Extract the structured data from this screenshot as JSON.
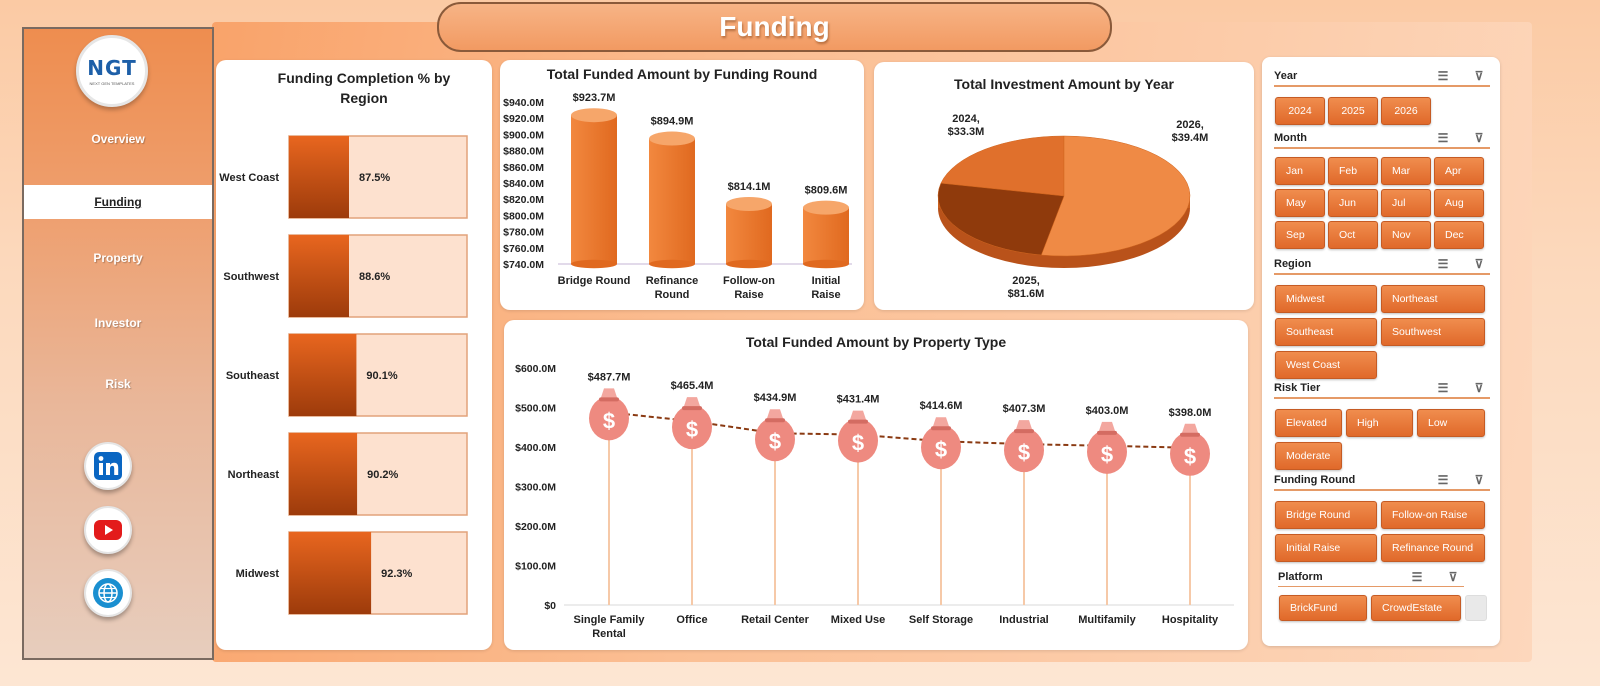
{
  "page": {
    "title": "Funding"
  },
  "sidebar": {
    "logo": {
      "text": "NGT",
      "subtext": "NEXT GEN TEMPLATES"
    },
    "items": [
      {
        "label": "Overview"
      },
      {
        "label": "Funding",
        "active": true
      },
      {
        "label": "Property"
      },
      {
        "label": "Investor"
      },
      {
        "label": "Risk"
      }
    ],
    "social": [
      "linkedin-icon",
      "youtube-icon",
      "globe-icon"
    ]
  },
  "colors": {
    "accent": "#e0692a",
    "accent_light": "#fde1cf",
    "bar_dark": "#9d3b0b",
    "pie_dark": "#8f3a0c",
    "pie_light": "#ef8a45",
    "bag": "#ee8a80"
  },
  "chart_data": [
    {
      "id": "completion",
      "type": "bar",
      "orientation": "horizontal",
      "title": "Funding Completion % by Region",
      "categories": [
        "West Coast",
        "Southwest",
        "Southeast",
        "Northeast",
        "Midwest"
      ],
      "values": [
        87.5,
        88.6,
        90.1,
        90.2,
        92.3
      ],
      "labels": [
        "87.5%",
        "88.6%",
        "90.1%",
        "90.2%",
        "92.3%"
      ],
      "xlim": [
        0,
        100
      ]
    },
    {
      "id": "funding_round",
      "type": "bar",
      "title": "Total Funded Amount by Funding Round",
      "categories": [
        "Bridge Round",
        "Refinance Round",
        "Follow-on Raise",
        "Initial Raise"
      ],
      "values": [
        923.7,
        894.9,
        814.1,
        809.6
      ],
      "labels": [
        "$923.7M",
        "$894.9M",
        "$814.1M",
        "$809.6M"
      ],
      "ylim": [
        740,
        940
      ],
      "yticks": [
        "$940.0M",
        "$920.0M",
        "$900.0M",
        "$880.0M",
        "$860.0M",
        "$840.0M",
        "$820.0M",
        "$800.0M",
        "$780.0M",
        "$760.0M",
        "$740.0M"
      ]
    },
    {
      "id": "investment_year",
      "type": "pie",
      "title": "Total Investment Amount by Year",
      "categories": [
        "2024",
        "2025",
        "2026"
      ],
      "values": [
        33.3,
        81.6,
        39.4
      ],
      "labels": [
        "2024,\n$33.3M",
        "2025,\n$81.6M",
        "2026,\n$39.4M"
      ]
    },
    {
      "id": "property_type",
      "type": "line",
      "title": "Total Funded Amount by Property Type",
      "categories": [
        "Single Family Rental",
        "Office",
        "Retail Center",
        "Mixed Use",
        "Self Storage",
        "Industrial",
        "Multifamily",
        "Hospitality"
      ],
      "values": [
        487.7,
        465.4,
        434.9,
        431.4,
        414.6,
        407.3,
        403.0,
        398.0
      ],
      "labels": [
        "$487.7M",
        "$465.4M",
        "$434.9M",
        "$431.4M",
        "$414.6M",
        "$407.3M",
        "$403.0M",
        "$398.0M"
      ],
      "ylim": [
        0,
        600
      ],
      "yticks": [
        "$600.0M",
        "$500.0M",
        "$400.0M",
        "$300.0M",
        "$200.0M",
        "$100.0M",
        "$0"
      ]
    }
  ],
  "slicers": {
    "year": {
      "title": "Year",
      "items": [
        "2024",
        "2025",
        "2026"
      ]
    },
    "month": {
      "title": "Month",
      "items": [
        "Jan",
        "Feb",
        "Mar",
        "Apr",
        "May",
        "Jun",
        "Jul",
        "Aug",
        "Sep",
        "Oct",
        "Nov",
        "Dec"
      ]
    },
    "region": {
      "title": "Region",
      "items": [
        "Midwest",
        "Northeast",
        "Southeast",
        "Southwest",
        "West Coast"
      ]
    },
    "risk": {
      "title": "Risk Tier",
      "items": [
        "Elevated",
        "High",
        "Low",
        "Moderate"
      ]
    },
    "round": {
      "title": "Funding Round",
      "items": [
        "Bridge Round",
        "Follow-on Raise",
        "Initial Raise",
        "Refinance Round"
      ]
    },
    "platform": {
      "title": "Platform",
      "items": [
        "BrickFund",
        "CrowdEstate"
      ]
    }
  }
}
